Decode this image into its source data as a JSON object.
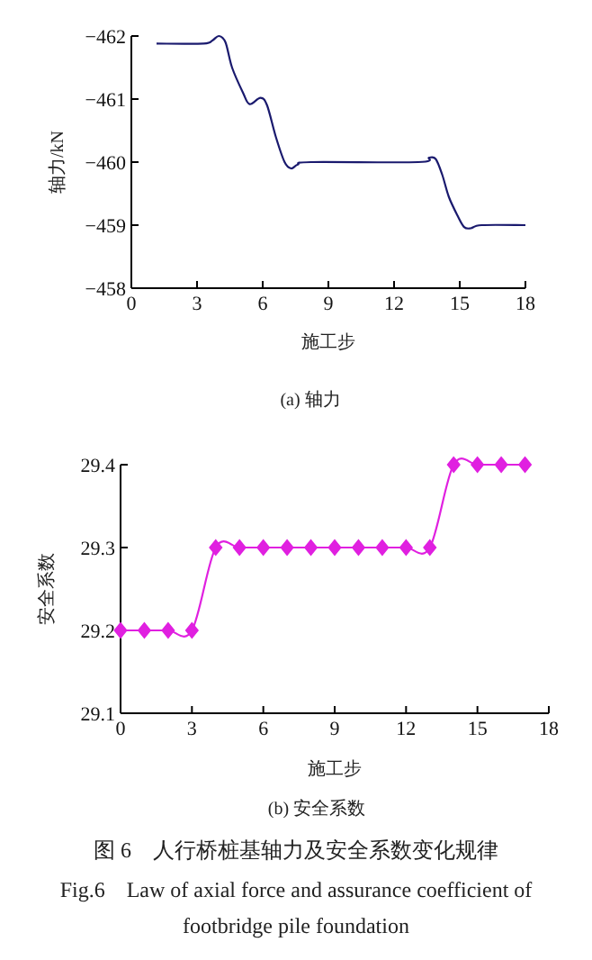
{
  "chart_data": [
    {
      "type": "line",
      "title": "(a) 轴力",
      "xlabel": "施工步",
      "ylabel": "轴力/kN",
      "xlim": [
        0,
        18
      ],
      "xticks": [
        0,
        3,
        6,
        9,
        12,
        15,
        18
      ],
      "ylim": [
        -458,
        -462
      ],
      "yticks": [
        -458,
        -459,
        -460,
        -461,
        -462
      ],
      "marker": "none",
      "line_style": "solid",
      "series": [
        {
          "color": "#1a1a6e",
          "x": [
            1.15,
            3.3,
            3.7,
            4.0,
            4.3,
            4.6,
            5.1,
            5.4,
            5.9,
            6.2,
            6.6,
            7.0,
            7.3,
            7.6,
            8.2,
            13.1,
            13.6,
            13.9,
            14.2,
            14.5,
            14.9,
            15.2,
            15.5,
            16,
            18
          ],
          "values": [
            -461.88,
            -461.88,
            -461.93,
            -462.0,
            -461.9,
            -461.5,
            -461.1,
            -460.92,
            -461.02,
            -460.9,
            -460.4,
            -460.0,
            -459.9,
            -459.96,
            -460.0,
            -460.0,
            -460.07,
            -460.05,
            -459.8,
            -459.45,
            -459.15,
            -458.97,
            -458.95,
            -459.0,
            -459.0
          ]
        }
      ]
    },
    {
      "type": "line",
      "title": "(b) 安全系数",
      "xlabel": "施工步",
      "ylabel": "安全系数",
      "xlim": [
        0,
        18
      ],
      "xticks": [
        0,
        3,
        6,
        9,
        12,
        15,
        18
      ],
      "ylim": [
        29.1,
        29.4
      ],
      "yticks": [
        29.1,
        29.2,
        29.3,
        29.4
      ],
      "marker": "diamond",
      "line_style": "solid",
      "series": [
        {
          "color": "#e020e0",
          "x": [
            0,
            1,
            2,
            3,
            4,
            5,
            6,
            7,
            8,
            9,
            10,
            11,
            12,
            13,
            14,
            15,
            16,
            17
          ],
          "values": [
            29.2,
            29.2,
            29.2,
            29.2,
            29.3,
            29.3,
            29.3,
            29.3,
            29.3,
            29.3,
            29.3,
            29.3,
            29.3,
            29.3,
            29.4,
            29.4,
            29.4,
            29.4
          ]
        }
      ],
      "annotations": [
        "图 6　人行桥桩基轴力及安全系数变化规律",
        "Fig.6　Law of axial force and assurance coefficient of footbridge pile foundation"
      ]
    }
  ]
}
